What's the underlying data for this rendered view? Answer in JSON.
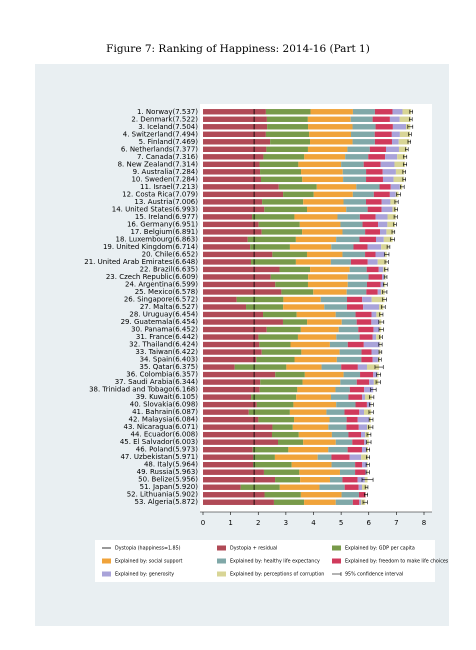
{
  "chart_data": {
    "type": "stacked-barh",
    "title": "Figure 7: Ranking of Happiness: 2014-16 (Part 1)",
    "categories": [
      "1. Norway(7.537)",
      "2. Denmark(7.522)",
      "3. Iceland(7.504)",
      "4. Switzerland(7.494)",
      "5. Finland(7.469)",
      "6. Netherlands(7.377)",
      "7. Canada(7.316)",
      "8. New Zealand(7.314)",
      "9. Australia(7.284)",
      "10. Sweden(7.284)",
      "11. Israel(7.213)",
      "12. Costa Rica(7.079)",
      "13. Austria(7.006)",
      "14. United States(6.993)",
      "15. Ireland(6.977)",
      "16. Germany(6.951)",
      "17. Belgium(6.891)",
      "18. Luxembourg(6.863)",
      "19. United Kingdom(6.714)",
      "20. Chile(6.652)",
      "21. United Arab Emirates(6.648)",
      "22. Brazil(6.635)",
      "23. Czech Republic(6.609)",
      "24. Argentina(6.599)",
      "25. Mexico(6.578)",
      "26. Singapore(6.572)",
      "27. Malta(6.527)",
      "28. Uruguay(6.454)",
      "29. Guatemala(6.454)",
      "30. Panama(6.452)",
      "31. France(6.442)",
      "32. Thailand(6.424)",
      "33. Taiwan(6.422)",
      "34. Spain(6.403)",
      "35. Qatar(6.375)",
      "36. Colombia(6.357)",
      "37. Saudi Arabia(6.344)",
      "38. Trinidad and Tobago(6.168)",
      "39. Kuwait(6.105)",
      "40. Slovakia(6.098)",
      "41. Bahrain(6.087)",
      "42. Malaysia(6.084)",
      "43. Nicaragua(6.071)",
      "44. Ecuador(6.008)",
      "45. El Salvador(6.003)",
      "46. Poland(5.973)",
      "47. Uzbekistan(5.971)",
      "48. Italy(5.964)",
      "49. Russia(5.963)",
      "50. Belize(5.956)",
      "51. Japan(5.920)",
      "52. Lithuania(5.902)",
      "53. Algeria(5.872)"
    ],
    "series": [
      {
        "name": "Dystopia + residual",
        "color": "#b04a56",
        "values": [
          2.277,
          2.314,
          2.321,
          2.276,
          2.43,
          2.295,
          2.187,
          2.046,
          2.065,
          2.099,
          2.743,
          2.899,
          2.139,
          2.219,
          1.774,
          2.015,
          2.123,
          1.62,
          1.706,
          2.511,
          1.737,
          2.77,
          2.452,
          2.615,
          2.838,
          1.218,
          1.558,
          2.173,
          2.895,
          2.307,
          2.006,
          2.039,
          2.127,
          1.928,
          1.147,
          2.615,
          2.073,
          2.054,
          1.74,
          1.947,
          1.657,
          2.005,
          2.514,
          2.497,
          2.715,
          1.798,
          1.817,
          1.814,
          2.206,
          2.608,
          1.363,
          2.227,
          2.568
        ]
      },
      {
        "name": "Explained by: GDP per capita",
        "color": "#789a4a",
        "values": [
          1.616,
          1.482,
          1.481,
          1.565,
          1.444,
          1.504,
          1.479,
          1.406,
          1.484,
          1.494,
          1.376,
          1.109,
          1.487,
          1.546,
          1.536,
          1.488,
          1.464,
          1.742,
          1.441,
          1.253,
          1.626,
          1.107,
          1.353,
          1.185,
          1.153,
          1.692,
          1.343,
          1.218,
          0.872,
          1.234,
          1.431,
          1.128,
          1.434,
          1.384,
          1.871,
          1.071,
          1.531,
          1.361,
          1.633,
          1.326,
          1.488,
          1.291,
          0.737,
          0.971,
          0.91,
          1.292,
          0.786,
          1.395,
          1.282,
          0.908,
          1.417,
          1.315,
          1.092
        ]
      },
      {
        "name": "Explained by: social support",
        "color": "#f0a33a",
        "values": [
          1.534,
          1.551,
          1.611,
          1.517,
          1.54,
          1.429,
          1.481,
          1.548,
          1.51,
          1.478,
          1.431,
          1.416,
          1.46,
          1.42,
          1.558,
          1.473,
          1.462,
          1.458,
          1.496,
          1.284,
          1.266,
          1.431,
          1.434,
          1.44,
          1.211,
          1.354,
          1.488,
          1.412,
          1.256,
          1.373,
          1.388,
          1.426,
          1.384,
          1.532,
          1.274,
          1.403,
          1.367,
          1.38,
          1.26,
          1.548,
          1.323,
          1.284,
          1.287,
          1.198,
          1.182,
          1.446,
          1.549,
          1.445,
          1.47,
          1.081,
          1.436,
          1.474,
          1.146
        ]
      },
      {
        "name": "Explained by: healthy life expectancy",
        "color": "#80a8a8",
        "values": [
          0.797,
          0.793,
          0.834,
          0.858,
          0.809,
          0.811,
          0.835,
          0.817,
          0.844,
          0.831,
          0.84,
          0.76,
          0.815,
          0.774,
          0.81,
          0.799,
          0.819,
          0.845,
          0.805,
          0.819,
          0.726,
          0.617,
          0.754,
          0.695,
          0.71,
          0.949,
          0.821,
          0.719,
          0.54,
          0.706,
          0.844,
          0.647,
          0.794,
          0.889,
          0.71,
          0.596,
          0.595,
          0.52,
          0.632,
          0.7,
          0.653,
          0.619,
          0.653,
          0.599,
          0.596,
          0.699,
          0.498,
          0.853,
          0.547,
          0.45,
          0.913,
          0.629,
          0.618
        ]
      },
      {
        "name": "Explained by: freedom to make life choices",
        "color": "#d03a5c",
        "values": [
          0.635,
          0.626,
          0.627,
          0.62,
          0.618,
          0.585,
          0.611,
          0.614,
          0.602,
          0.613,
          0.406,
          0.58,
          0.568,
          0.506,
          0.573,
          0.563,
          0.539,
          0.597,
          0.508,
          0.377,
          0.608,
          0.437,
          0.491,
          0.494,
          0.413,
          0.55,
          0.589,
          0.579,
          0.531,
          0.55,
          0.47,
          0.581,
          0.361,
          0.409,
          0.604,
          0.477,
          0.45,
          0.519,
          0.497,
          0.413,
          0.536,
          0.402,
          0.448,
          0.455,
          0.432,
          0.52,
          0.658,
          0.256,
          0.374,
          0.548,
          0.506,
          0.235,
          0.233
        ]
      },
      {
        "name": "Explained by: generosity",
        "color": "#a9a3d9",
        "values": [
          0.362,
          0.355,
          0.476,
          0.291,
          0.245,
          0.47,
          0.436,
          0.5,
          0.478,
          0.385,
          0.331,
          0.215,
          0.316,
          0.393,
          0.428,
          0.336,
          0.232,
          0.283,
          0.493,
          0.326,
          0.361,
          0.162,
          0.088,
          0.11,
          0.12,
          0.345,
          0.575,
          0.175,
          0.283,
          0.211,
          0.13,
          0.572,
          0.258,
          0.19,
          0.33,
          0.15,
          0.168,
          0.325,
          0.103,
          0.141,
          0.173,
          0.417,
          0.301,
          0.148,
          0.078,
          0.158,
          0.416,
          0.173,
          0.052,
          0.264,
          0.121,
          0.01,
          0.069
        ]
      },
      {
        "name": "Explained by: perceptions of corruption",
        "color": "#d8d596",
        "values": [
          0.316,
          0.401,
          0.154,
          0.367,
          0.383,
          0.283,
          0.287,
          0.383,
          0.301,
          0.384,
          0.086,
          0.1,
          0.221,
          0.135,
          0.298,
          0.277,
          0.252,
          0.318,
          0.265,
          0.082,
          0.324,
          0.111,
          0.037,
          0.06,
          0.133,
          0.464,
          0.153,
          0.178,
          0.077,
          0.071,
          0.173,
          0.031,
          0.064,
          0.071,
          0.439,
          0.045,
          0.16,
          0.009,
          0.24,
          0.023,
          0.257,
          0.066,
          0.131,
          0.14,
          0.09,
          0.06,
          0.247,
          0.028,
          0.032,
          0.097,
          0.164,
          0.012,
          0.146
        ]
      }
    ],
    "errors": [
      0.05,
      0.05,
      0.09,
      0.05,
      0.05,
      0.05,
      0.06,
      0.06,
      0.05,
      0.05,
      0.07,
      0.07,
      0.06,
      0.05,
      0.06,
      0.05,
      0.05,
      0.07,
      0.05,
      0.08,
      0.06,
      0.06,
      0.05,
      0.07,
      0.08,
      0.07,
      0.07,
      0.06,
      0.09,
      0.08,
      0.05,
      0.06,
      0.05,
      0.05,
      0.15,
      0.07,
      0.08,
      0.1,
      0.08,
      0.07,
      0.08,
      0.07,
      0.08,
      0.07,
      0.08,
      0.06,
      0.06,
      0.06,
      0.06,
      0.2,
      0.05,
      0.06,
      0.08
    ],
    "dystopia": 1.85,
    "dystopia_label": "Dystopia (happiness=1.85)",
    "ci_label": "95% confidence interval",
    "xlim": [
      0,
      8
    ],
    "xticks": [
      0,
      1,
      2,
      3,
      4,
      5,
      6,
      7,
      8
    ]
  }
}
